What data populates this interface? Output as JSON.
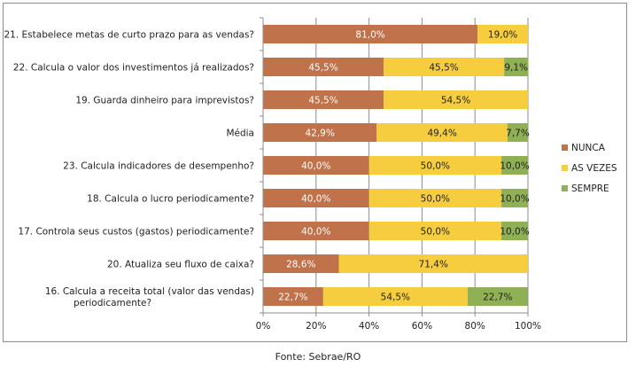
{
  "chart_data": {
    "type": "bar",
    "orientation": "horizontal",
    "stacked": "percent",
    "title": "",
    "xlabel": "",
    "ylabel": "",
    "xlim": [
      0,
      100
    ],
    "x_ticks": [
      "0%",
      "20%",
      "40%",
      "60%",
      "80%",
      "100%"
    ],
    "grid": "vertical",
    "legend_position": "right",
    "categories": [
      "21. Estabelece metas de curto prazo para as vendas?",
      "22. Calcula o valor dos investimentos já realizados?",
      "19. Guarda dinheiro para imprevistos?",
      "Média",
      "23. Calcula indicadores de desempenho?",
      "18. Calcula o lucro periodicamente?",
      "17. Controla seus custos (gastos) periodicamente?",
      "20. Atualiza seu fluxo de caixa?",
      "16. Calcula a receita total (valor das vendas) periodicamente?"
    ],
    "category_lines": [
      [
        "21. Estabelece metas de curto prazo para as vendas?"
      ],
      [
        "22. Calcula o valor dos investimentos já realizados?"
      ],
      [
        "19. Guarda dinheiro para imprevistos?"
      ],
      [
        "Média"
      ],
      [
        "23. Calcula indicadores de desempenho?"
      ],
      [
        "18. Calcula o lucro periodicamente?"
      ],
      [
        "17. Controla seus custos (gastos) periodicamente?"
      ],
      [
        "20. Atualiza seu fluxo de caixa?"
      ],
      [
        "16. Calcula a receita total (valor das vendas)",
        "periodicamente?"
      ]
    ],
    "series": [
      {
        "name": "NUNCA",
        "color": "#C0724A",
        "label_color": "#ffffff",
        "values": [
          81.0,
          45.5,
          45.5,
          42.9,
          40.0,
          40.0,
          40.0,
          28.6,
          22.7
        ],
        "labels": [
          "81,0%",
          "45,5%",
          "45,5%",
          "42,9%",
          "40,0%",
          "40,0%",
          "40,0%",
          "28,6%",
          "22,7%"
        ]
      },
      {
        "name": "AS VEZES",
        "color": "#F5CD3F",
        "label_color": "#222222",
        "values": [
          19.0,
          45.5,
          54.5,
          49.4,
          50.0,
          50.0,
          50.0,
          71.4,
          54.5
        ],
        "labels": [
          "19,0%",
          "45,5%",
          "54,5%",
          "49,4%",
          "50,0%",
          "50,0%",
          "50,0%",
          "71,4%",
          "54,5%"
        ]
      },
      {
        "name": "SEMPRE",
        "color": "#8FB054",
        "label_color": "#222222",
        "values": [
          0,
          9.1,
          0,
          7.7,
          10.0,
          10.0,
          10.0,
          0,
          22.7
        ],
        "labels": [
          "",
          "9,1%",
          "",
          "7,7%",
          "10,0%",
          "10,0%",
          "10,0%",
          "",
          "22,7%"
        ]
      }
    ]
  },
  "source_note": "Fonte: Sebrae/RO"
}
